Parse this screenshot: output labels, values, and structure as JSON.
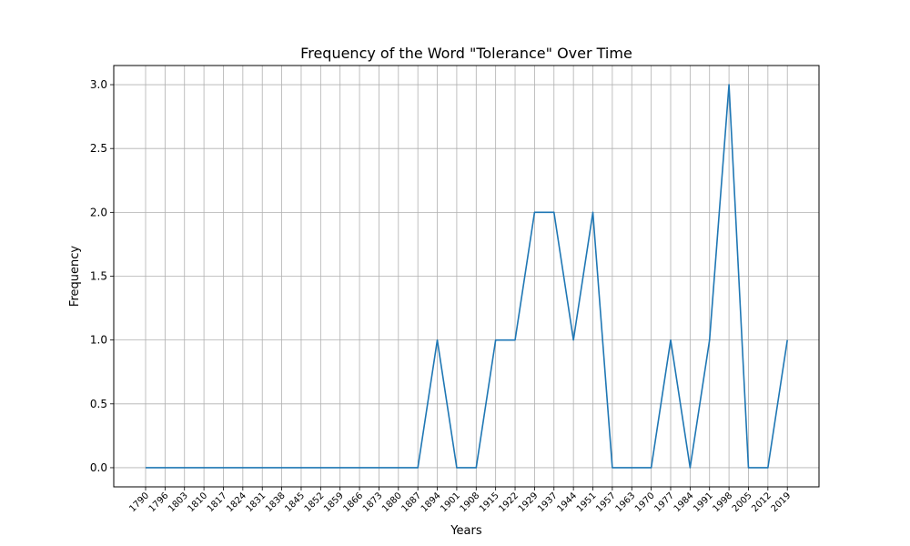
{
  "chart_data": {
    "type": "line",
    "title": "Frequency of the Word \"Tolerance\" Over Time",
    "xlabel": "Years",
    "ylabel": "Frequency",
    "categories": [
      "1790",
      "1796",
      "1803",
      "1810",
      "1817",
      "1824",
      "1831",
      "1838",
      "1845",
      "1852",
      "1859",
      "1866",
      "1873",
      "1880",
      "1887",
      "1894",
      "1901",
      "1908",
      "1915",
      "1922",
      "1929",
      "1937",
      "1944",
      "1951",
      "1957",
      "1963",
      "1970",
      "1977",
      "1984",
      "1991",
      "1998",
      "2005",
      "2012",
      "2019"
    ],
    "series": [
      {
        "values": [
          0,
          0,
          0,
          0,
          0,
          0,
          0,
          0,
          0,
          0,
          0,
          0,
          0,
          0,
          0,
          1,
          0,
          0,
          1,
          1,
          2,
          2,
          1,
          2,
          0,
          0,
          0,
          1,
          0,
          1,
          3,
          0,
          0,
          1
        ]
      }
    ],
    "yticks": [
      "0.0",
      "0.5",
      "1.0",
      "1.5",
      "2.0",
      "2.5",
      "3.0"
    ],
    "ylim": [
      -0.15,
      3.15
    ],
    "grid": true,
    "line_color": "#1f77b4"
  }
}
